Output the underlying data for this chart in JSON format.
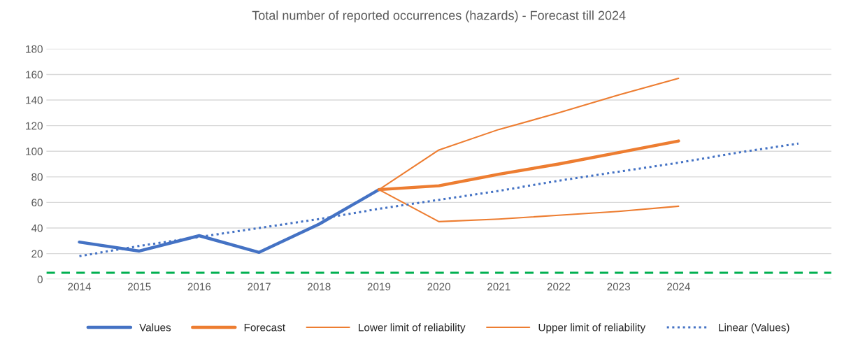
{
  "chart_data": {
    "type": "line",
    "title": "Total number of reported occurrences (hazards) - Forecast till 2024",
    "categories": [
      "2014",
      "2015",
      "2016",
      "2017",
      "2018",
      "2019",
      "2020",
      "2021",
      "2022",
      "2023",
      "2024",
      null,
      null
    ],
    "series": [
      {
        "name": "Values",
        "color": "#4472c4",
        "values": [
          29,
          22,
          34,
          21,
          43,
          70,
          null,
          null,
          null,
          null,
          null,
          null,
          null
        ]
      },
      {
        "name": "Forecast",
        "color": "#ed7d31",
        "values": [
          null,
          null,
          null,
          null,
          null,
          70,
          73,
          82,
          90,
          99,
          108,
          null,
          null
        ]
      },
      {
        "name": "Lower limit of reliability",
        "color": "#ed7d31",
        "values": [
          null,
          null,
          null,
          null,
          null,
          70,
          45,
          47,
          50,
          53,
          57,
          null,
          null
        ]
      },
      {
        "name": "Upper limit of reliability",
        "color": "#ed7d31",
        "values": [
          null,
          null,
          null,
          null,
          null,
          70,
          101,
          117,
          130,
          144,
          157,
          null,
          null
        ]
      },
      {
        "name": "Linear (Values)",
        "color": "#4472c4",
        "line_style": "dotted",
        "values": [
          18,
          26,
          33,
          40,
          47,
          55,
          62,
          69,
          77,
          84,
          91,
          99,
          106
        ]
      }
    ],
    "ylim": [
      0,
      180
    ],
    "yticks": [
      0,
      20,
      40,
      60,
      80,
      100,
      120,
      140,
      160,
      180
    ],
    "grid": "y",
    "legend": "bottom",
    "marker": "none",
    "line_style": "solid",
    "ref_lines": [
      {
        "axis": "y",
        "value": 5,
        "color": "#00b050",
        "line_style": "dashed"
      }
    ]
  }
}
